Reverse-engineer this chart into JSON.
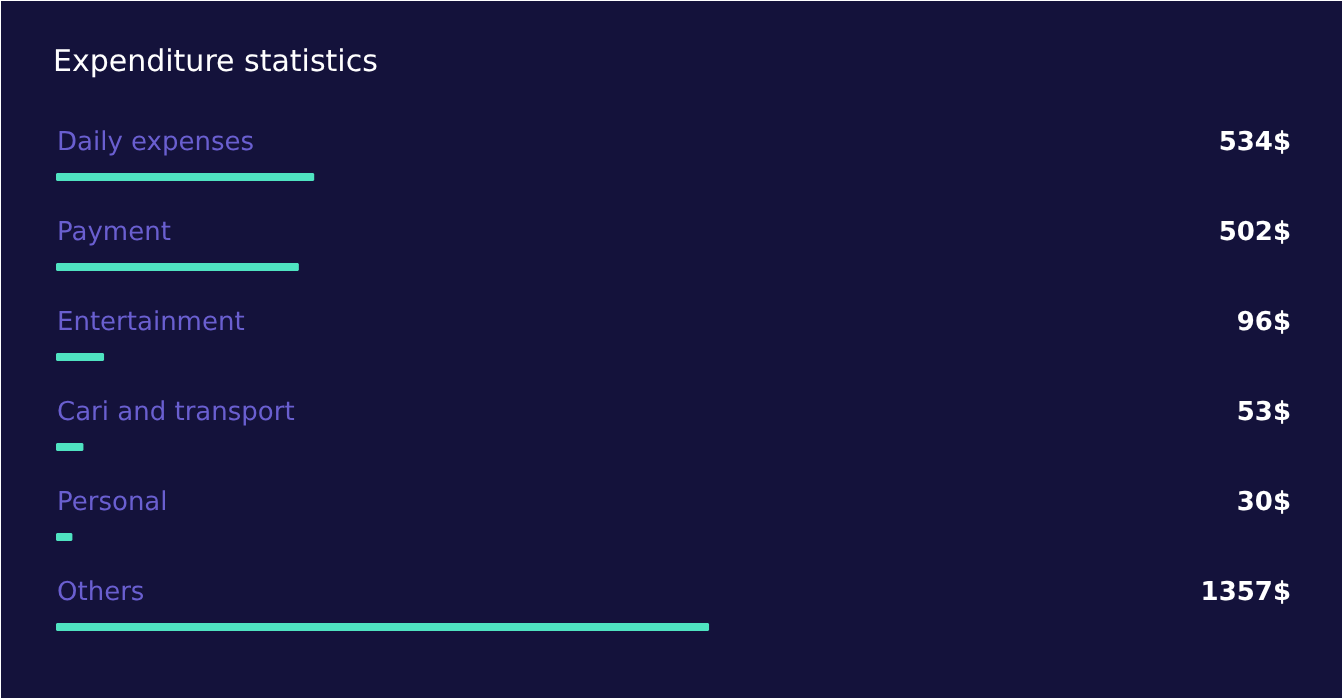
{
  "chart_data": {
    "type": "bar",
    "orientation": "horizontal",
    "title": "Expenditure statistics",
    "categories": [
      "Daily expenses",
      "Payment",
      "Entertainment",
      "Cari and transport",
      "Personal",
      "Others"
    ],
    "values": [
      534,
      502,
      96,
      53,
      30,
      1357
    ],
    "color": "#4fe3c1",
    "value_labels": [
      "534$",
      "502$",
      "96$",
      "53$",
      "30$",
      "1357$"
    ],
    "grid": false
  }
}
